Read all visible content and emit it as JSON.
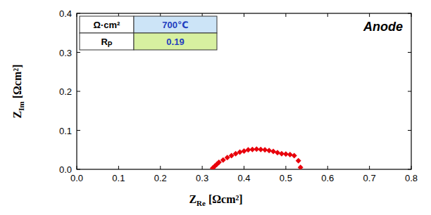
{
  "chart_data": {
    "type": "scatter",
    "annotation": "Anode",
    "xlabel": {
      "main": "Z",
      "sub": "Re",
      "unit": " [Ωcm²]"
    },
    "ylabel": {
      "main": "Z",
      "sub": "Im",
      "unit": " [Ωcm²]"
    },
    "x": [
      0.325,
      0.33,
      0.335,
      0.34,
      0.35,
      0.36,
      0.37,
      0.38,
      0.39,
      0.4,
      0.41,
      0.42,
      0.43,
      0.44,
      0.45,
      0.46,
      0.47,
      0.48,
      0.49,
      0.5,
      0.51,
      0.52,
      0.53,
      0.535
    ],
    "series": [
      {
        "name": "Anode",
        "color": "#e8000b",
        "marker": "diamond",
        "values": [
          0.003,
          0.008,
          0.013,
          0.018,
          0.024,
          0.03,
          0.035,
          0.04,
          0.044,
          0.047,
          0.05,
          0.051,
          0.052,
          0.051,
          0.05,
          0.048,
          0.046,
          0.043,
          0.04,
          0.039,
          0.038,
          0.035,
          0.022,
          0.005
        ]
      }
    ],
    "xlim": [
      0,
      0.8
    ],
    "xticks": [
      {
        "value": 0,
        "label": "0.0"
      },
      0.1,
      0.2,
      0.3,
      0.4,
      0.5,
      0.6,
      0.7,
      0.8
    ],
    "ylim": [
      0,
      0.4
    ],
    "yticks": [
      {
        "value": 0,
        "label": "0.0"
      },
      0.1,
      0.2,
      0.3,
      0.4
    ],
    "inset_table": {
      "header": [
        "Ω·cm²",
        "700℃"
      ],
      "row_label": {
        "main": "R",
        "sub": "P"
      },
      "row_value": 0.19
    }
  }
}
